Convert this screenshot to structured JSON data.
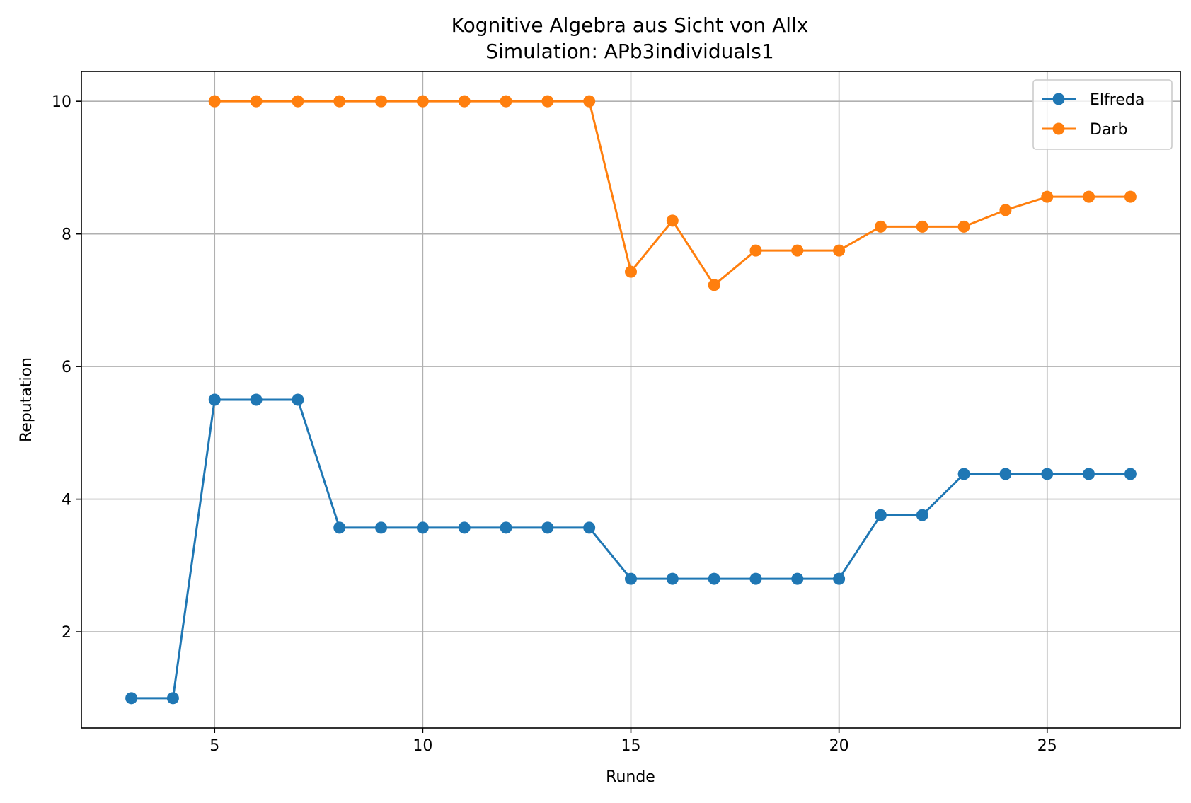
{
  "chart_data": {
    "type": "line",
    "title": "Kognitive Algebra aus Sicht von Allx",
    "subtitle": "Simulation: APb3individuals1",
    "xlabel": "Runde",
    "ylabel": "Reputation",
    "xlim": [
      1.8,
      28.2
    ],
    "ylim": [
      0.55,
      10.45
    ],
    "xticks": [
      5,
      10,
      15,
      20,
      25
    ],
    "yticks": [
      2,
      4,
      6,
      8,
      10
    ],
    "grid": true,
    "legend_position": "upper right",
    "series": [
      {
        "name": "Elfreda",
        "color": "#1f77b4",
        "x": [
          3,
          4,
          5,
          6,
          7,
          8,
          9,
          10,
          11,
          12,
          13,
          14,
          15,
          16,
          17,
          18,
          19,
          20,
          21,
          22,
          23,
          24,
          25,
          26,
          27
        ],
        "y": [
          1.0,
          1.0,
          5.5,
          5.5,
          5.5,
          3.57,
          3.57,
          3.57,
          3.57,
          3.57,
          3.57,
          3.57,
          2.8,
          2.8,
          2.8,
          2.8,
          2.8,
          2.8,
          3.76,
          3.76,
          4.38,
          4.38,
          4.38,
          4.38,
          4.38
        ]
      },
      {
        "name": "Darb",
        "color": "#ff7f0e",
        "x": [
          5,
          6,
          7,
          8,
          9,
          10,
          11,
          12,
          13,
          14,
          15,
          16,
          17,
          18,
          19,
          20,
          21,
          22,
          23,
          24,
          25,
          26,
          27
        ],
        "y": [
          10.0,
          10.0,
          10.0,
          10.0,
          10.0,
          10.0,
          10.0,
          10.0,
          10.0,
          10.0,
          7.43,
          8.2,
          7.23,
          7.75,
          7.75,
          7.75,
          8.11,
          8.11,
          8.11,
          8.36,
          8.56,
          8.56,
          8.56
        ]
      }
    ]
  }
}
